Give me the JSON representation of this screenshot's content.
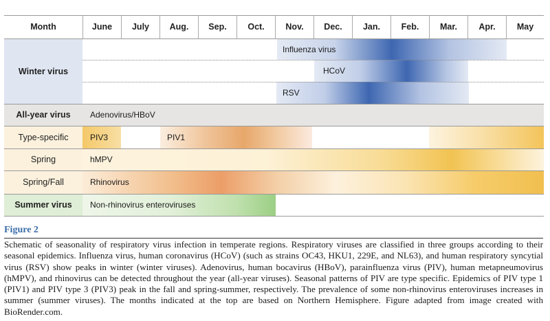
{
  "header": {
    "month_label": "Month",
    "months": [
      "June",
      "July",
      "Aug.",
      "Sep.",
      "Oct.",
      "Nov.",
      "Dec.",
      "Jan.",
      "Feb.",
      "Mar.",
      "Apr.",
      "May"
    ]
  },
  "groups": {
    "winter": "Winter virus",
    "all_year": "All-year virus",
    "type_specific": "Type-specific",
    "spring": "Spring",
    "spring_fall": "Spring/Fall",
    "summer": "Summer virus"
  },
  "viruses": {
    "influenza": "Influenza virus",
    "hcov": "HCoV",
    "rsv": "RSV",
    "adeno": "Adenovirus/HBoV",
    "piv3": "PIV3",
    "piv1": "PIV1",
    "hmpv": "hMPV",
    "rhino": "Rhinovirus",
    "entero": "Non-rhinovirus enteroviruses"
  },
  "colors": {
    "winter_label_bg": "#dfe6f2",
    "winter_peak": "#3e67b1",
    "all_year_bg": "#e6e5e3",
    "type_specific_bg": "#fbf1dd",
    "orange_peak": "#e7a76a",
    "yellow_peak": "#f2c04e",
    "summer_label_bg": "#dfeed6",
    "summer_green": "#9ccf84",
    "figure_title": "#3a6da8"
  },
  "figure": {
    "title": "Figure 2",
    "caption": "Schematic of seasonality of respiratory virus infection in temperate regions. Respiratory viruses are classified in three groups according to their seasonal epidemics. Influenza virus, human coronavirus (HCoV) (such as strains OC43, HKU1, 229E, and NL63), and human respiratory syncytial virus (RSV) show peaks in winter (winter viruses). Adenovirus, human bocavirus (HBoV), parainfluenza virus (PIV), human metapneumovirus (hMPV), and rhinovirus can be detected throughout the year (all-year viruses). Seasonal patterns of PIV are type specific. Epidemics of PIV type 1 (PIV1) and PIV type 3 (PIV3) peak in the fall and spring-summer, respectively. The prevalence of some non-rhinovirus enteroviruses increases in summer (summer viruses). The months indicated at the top are based on Northern Hemisphere. Figure adapted from image created with BioRender.com."
  }
}
